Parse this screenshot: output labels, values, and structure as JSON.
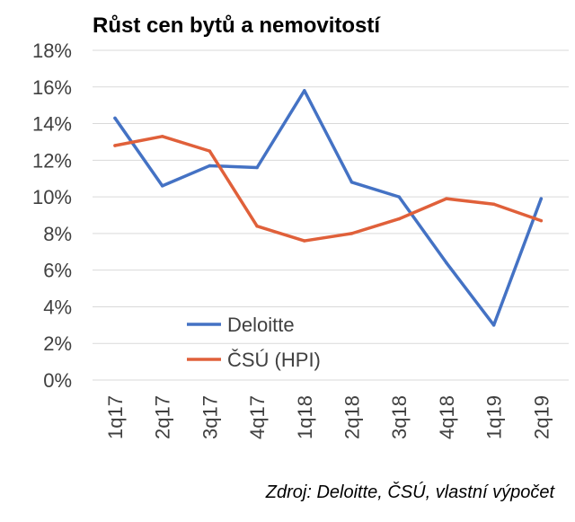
{
  "chart_data": {
    "type": "line",
    "title": "Růst cen bytů a nemovitostí",
    "categories": [
      "1q17",
      "2q17",
      "3q17",
      "4q17",
      "1q18",
      "2q18",
      "3q18",
      "4q18",
      "1q19",
      "2q19"
    ],
    "y_ticks": [
      "0%",
      "2%",
      "4%",
      "6%",
      "8%",
      "10%",
      "12%",
      "14%",
      "16%",
      "18%"
    ],
    "ylim": [
      0,
      18
    ],
    "grid": true,
    "legend_position": "bottom-left inside",
    "series": [
      {
        "name": "Deloitte",
        "color": "#4472c4",
        "values": [
          14.3,
          10.6,
          11.7,
          11.6,
          15.8,
          10.8,
          10.0,
          6.4,
          3.0,
          9.9
        ]
      },
      {
        "name": "ČSÚ (HPI)",
        "color": "#e0603a",
        "values": [
          12.8,
          13.3,
          12.5,
          8.4,
          7.6,
          8.0,
          8.8,
          9.9,
          9.6,
          8.7
        ]
      }
    ],
    "source": "Zdroj: Deloitte, ČSÚ, vlastní výpočet"
  }
}
